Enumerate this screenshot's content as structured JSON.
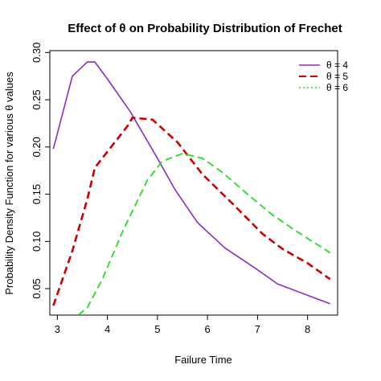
{
  "chart_data": {
    "type": "line",
    "title": "Effect of θ on Probability Distribution of Frechet",
    "xlabel": "Failure Time",
    "ylabel": "Probability Density Function for various θ values",
    "xlim": [
      2.85,
      8.6
    ],
    "ylim": [
      0.022,
      0.302
    ],
    "xticks": [
      3,
      4,
      5,
      6,
      7,
      8
    ],
    "yticks": [
      0.05,
      0.1,
      0.15,
      0.2,
      0.25,
      0.3
    ],
    "ytick_labels": [
      "0.05",
      "0.10",
      "0.15",
      "0.20",
      "0.25",
      "0.30"
    ],
    "grid": false,
    "legend_position": "top-right",
    "series": [
      {
        "name": "θ = 4",
        "color": "#8B2BC9",
        "style": "solid",
        "x": [
          2.92,
          3.3,
          3.6,
          3.75,
          4.0,
          4.45,
          5.0,
          5.35,
          5.8,
          6.35,
          7.0,
          7.4,
          8.0,
          8.45
        ],
        "y": [
          0.198,
          0.275,
          0.29,
          0.29,
          0.272,
          0.238,
          0.188,
          0.155,
          0.12,
          0.093,
          0.07,
          0.055,
          0.043,
          0.034
        ]
      },
      {
        "name": "θ = 5",
        "color": "#CC0000",
        "style": "dashed",
        "x": [
          2.92,
          3.3,
          3.6,
          3.75,
          4.0,
          4.4,
          4.5,
          4.9,
          5.4,
          5.9,
          6.5,
          7.1,
          7.5,
          8.0,
          8.45
        ],
        "y": [
          0.032,
          0.09,
          0.145,
          0.178,
          0.195,
          0.222,
          0.231,
          0.229,
          0.205,
          0.171,
          0.14,
          0.108,
          0.092,
          0.077,
          0.06
        ]
      },
      {
        "name": "θ = 6",
        "color": "#22DD22",
        "style": "dashed",
        "x": [
          3.42,
          3.6,
          3.9,
          4.3,
          4.8,
          5.1,
          5.5,
          5.9,
          6.3,
          6.8,
          7.3,
          7.8,
          8.45
        ],
        "y": [
          0.022,
          0.03,
          0.06,
          0.11,
          0.165,
          0.185,
          0.193,
          0.188,
          0.173,
          0.15,
          0.128,
          0.11,
          0.088
        ]
      }
    ]
  }
}
